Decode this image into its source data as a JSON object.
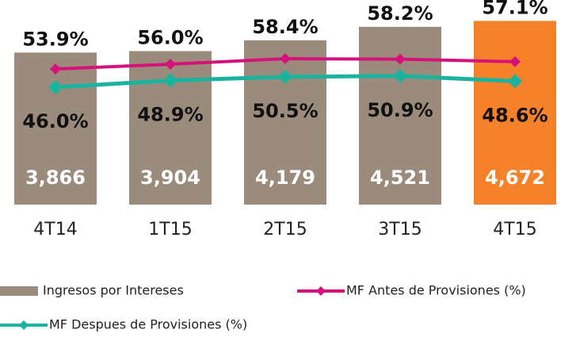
{
  "chart_data": {
    "type": "bar-line",
    "categories": [
      "4T14",
      "1T15",
      "2T15",
      "3T15",
      "4T15"
    ],
    "series": [
      {
        "name": "Ingresos por Intereses",
        "type": "bar",
        "color": "#9b8b7c",
        "colors": [
          "#9b8b7c",
          "#9b8b7c",
          "#9b8b7c",
          "#9b8b7c",
          "#f5822a"
        ],
        "values": [
          3866,
          3904,
          4179,
          4521,
          4672
        ],
        "value_labels": [
          "3,866",
          "3,904",
          "4,179",
          "4,521",
          "4,672"
        ]
      },
      {
        "name": "MF Antes de Provisiones (%)",
        "type": "line",
        "axis": "y2",
        "color": "#d6127a",
        "values": [
          53.9,
          56.0,
          58.4,
          58.2,
          57.1
        ],
        "value_labels": [
          "53.9%",
          "56.0%",
          "58.4%",
          "58.2%",
          "57.1%"
        ]
      },
      {
        "name": "MF Despues de Provisiones (%)",
        "type": "line",
        "axis": "y2",
        "color": "#1ab3a0",
        "values": [
          46.0,
          48.9,
          50.5,
          50.9,
          48.6
        ],
        "value_labels": [
          "46.0%",
          "48.9%",
          "50.5%",
          "50.9%",
          "48.6%"
        ]
      }
    ],
    "ylim": [
      0,
      4800
    ],
    "y2lim": [
      -5,
      77
    ]
  }
}
